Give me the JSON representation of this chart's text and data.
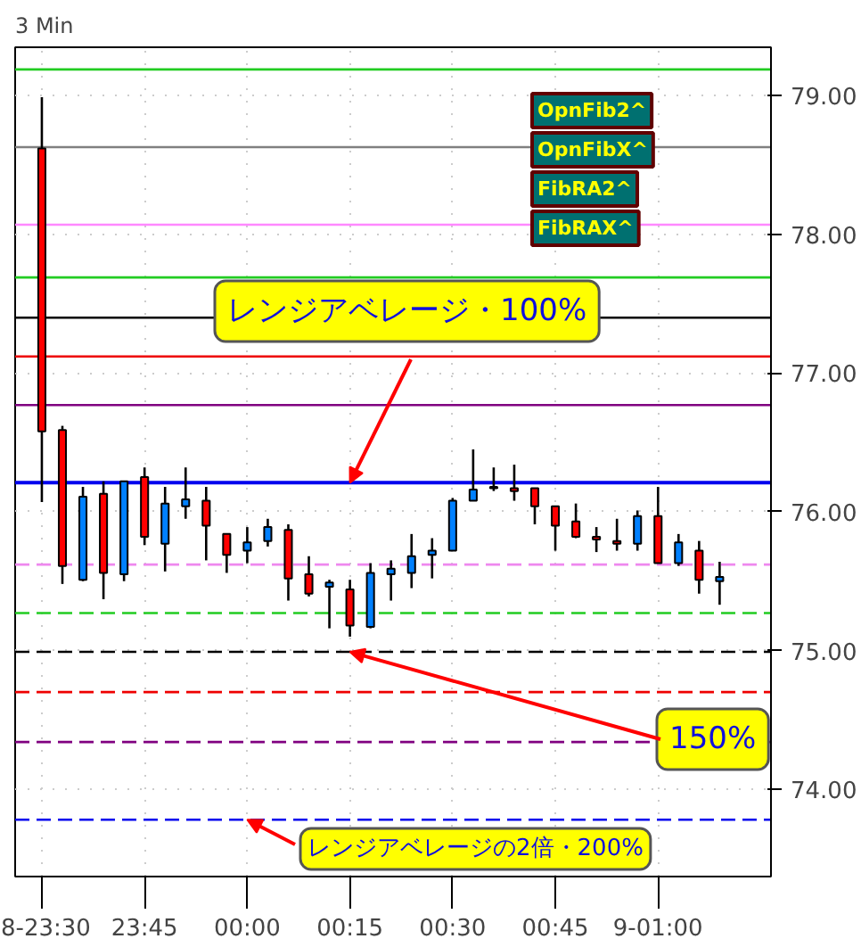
{
  "chart_data": {
    "type": "candlestick",
    "title": "3 Min",
    "categories": [
      "8-23:30",
      null,
      null,
      null,
      null,
      "23:45",
      null,
      null,
      null,
      null,
      "00:00",
      null,
      null,
      null,
      null,
      "00:15",
      null,
      null,
      null,
      null,
      "00:30",
      null,
      null,
      null,
      null,
      "00:45",
      null,
      null,
      null,
      null,
      "9-01:00",
      null,
      null,
      null
    ],
    "ohlc": [
      [
        78.62,
        78.99,
        76.07,
        76.58
      ],
      [
        76.59,
        76.62,
        75.48,
        75.61
      ],
      [
        75.51,
        76.18,
        75.5,
        76.11
      ],
      [
        76.13,
        76.22,
        75.37,
        75.56
      ],
      [
        75.55,
        76.22,
        75.5,
        76.22
      ],
      [
        76.25,
        76.32,
        75.76,
        75.82
      ],
      [
        75.77,
        76.18,
        75.57,
        76.06
      ],
      [
        76.04,
        76.32,
        75.95,
        76.09
      ],
      [
        76.08,
        76.18,
        75.65,
        75.9
      ],
      [
        75.84,
        75.84,
        75.56,
        75.69
      ],
      [
        75.72,
        75.89,
        75.63,
        75.78
      ],
      [
        75.79,
        75.95,
        75.75,
        75.89
      ],
      [
        75.87,
        75.91,
        75.36,
        75.52
      ],
      [
        75.55,
        75.68,
        75.39,
        75.41
      ],
      [
        75.46,
        75.51,
        75.16,
        75.49
      ],
      [
        75.44,
        75.51,
        75.1,
        75.18
      ],
      [
        75.17,
        75.63,
        75.16,
        75.56
      ],
      [
        75.55,
        75.65,
        75.36,
        75.59
      ],
      [
        75.56,
        75.84,
        75.45,
        75.68
      ],
      [
        75.69,
        75.81,
        75.52,
        75.72
      ],
      [
        75.72,
        76.1,
        75.72,
        76.08
      ],
      [
        76.08,
        76.45,
        76.08,
        76.16
      ],
      [
        76.18,
        76.32,
        76.15,
        76.17
      ],
      [
        76.17,
        76.34,
        76.08,
        76.15
      ],
      [
        76.17,
        76.17,
        75.91,
        76.04
      ],
      [
        76.04,
        76.04,
        75.72,
        75.9
      ],
      [
        75.93,
        76.06,
        75.81,
        75.82
      ],
      [
        75.82,
        75.89,
        75.71,
        75.8
      ],
      [
        75.79,
        75.95,
        75.72,
        75.77
      ],
      [
        75.77,
        76.01,
        75.72,
        75.97
      ],
      [
        75.97,
        76.18,
        75.63,
        75.63
      ],
      [
        75.63,
        75.84,
        75.61,
        75.78
      ],
      [
        75.72,
        75.79,
        75.41,
        75.51
      ],
      [
        75.5,
        75.64,
        75.33,
        75.53
      ]
    ],
    "colors": [
      "#ff0000",
      "#ff0000",
      "#0080ff",
      "#ff0000",
      "#0080ff",
      "#ff0000",
      "#0080ff",
      "#0080ff",
      "#ff0000",
      "#ff0000",
      "#0080ff",
      "#0080ff",
      "#ff0000",
      "#ff0000",
      "#0080ff",
      "#ff0000",
      "#0080ff",
      "#0080ff",
      "#0080ff",
      "#0080ff",
      "#0080ff",
      "#0080ff",
      "#ff0000",
      "#ff0000",
      "#ff0000",
      "#ff0000",
      "#ff0000",
      "#ff0000",
      "#ff0000",
      "#0080ff",
      "#ff0000",
      "#0080ff",
      "#ff0000",
      "#0080ff"
    ],
    "ylim": [
      73.37,
      79.35
    ],
    "yticks": [
      {
        "value": 74,
        "label": "74.00"
      },
      {
        "value": 75,
        "label": "75.00"
      },
      {
        "value": 76,
        "label": "76.00"
      },
      {
        "value": 77,
        "label": "77.00"
      },
      {
        "value": 78,
        "label": "78.00"
      },
      {
        "value": 79,
        "label": "79.00"
      }
    ],
    "grid": true,
    "ref_lines": [
      {
        "axis": "y",
        "value": 79.19,
        "color": "#22cc22",
        "line_style": "solid"
      },
      {
        "axis": "y",
        "value": 78.63,
        "color": "#808080",
        "line_style": "solid"
      },
      {
        "axis": "y",
        "value": 78.07,
        "color": "#ff88ff",
        "line_style": "solid"
      },
      {
        "axis": "y",
        "value": 77.69,
        "color": "#22cc22",
        "line_style": "solid"
      },
      {
        "axis": "y",
        "value": 77.4,
        "color": "#000000",
        "line_style": "solid"
      },
      {
        "axis": "y",
        "value": 77.12,
        "color": "#ee0000",
        "line_style": "solid"
      },
      {
        "axis": "y",
        "value": 76.77,
        "color": "#800080",
        "line_style": "solid"
      },
      {
        "axis": "y",
        "value": 76.21,
        "color": "#0000ee",
        "line_style": "solid"
      },
      {
        "axis": "y",
        "value": 75.62,
        "color": "#ee88ee",
        "line_style": "dashed"
      },
      {
        "axis": "y",
        "value": 75.27,
        "color": "#22cc22",
        "line_style": "dashed"
      },
      {
        "axis": "y",
        "value": 74.99,
        "color": "#000000",
        "line_style": "dashed"
      },
      {
        "axis": "y",
        "value": 74.7,
        "color": "#ee0000",
        "line_style": "dashed"
      },
      {
        "axis": "y",
        "value": 74.34,
        "color": "#800080",
        "line_style": "dashed"
      },
      {
        "axis": "y",
        "value": 73.78,
        "color": "#0000ee",
        "line_style": "dashed"
      }
    ],
    "annotations": [
      {
        "text": "レンジアベレージ・100%",
        "x": "00:15",
        "y": 76.21
      },
      {
        "text": "150%",
        "x": "00:15",
        "y": 74.99
      },
      {
        "text": "レンジアベレージの2倍・200%",
        "x": "00:00",
        "y": 73.78
      },
      "OpnFib2^",
      "OpnFibX^",
      "FibRA2^",
      "FibRAX^"
    ]
  }
}
